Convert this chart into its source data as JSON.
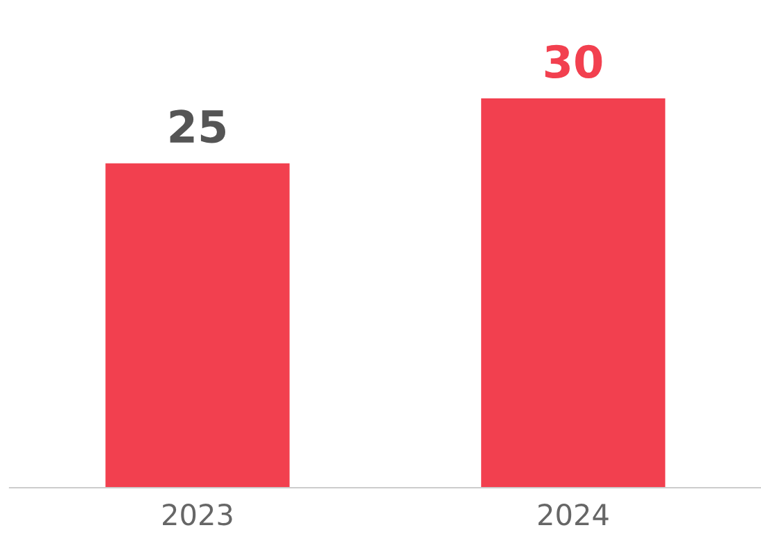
{
  "chart_data": {
    "type": "bar",
    "categories": [
      "2023",
      "2024"
    ],
    "values": [
      25,
      30
    ],
    "colors": [
      "#f2404f",
      "#f2404f"
    ],
    "data_labels": true,
    "grid": false,
    "tick_labels": "x"
  }
}
